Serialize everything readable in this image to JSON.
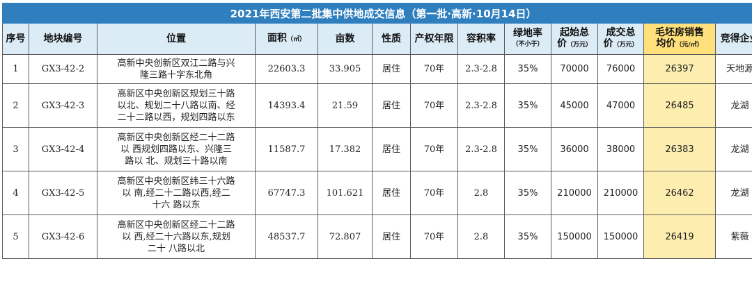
{
  "title": "2021年西安第二批集中供地成交信息（第一批·高新·10月14日）",
  "headers": {
    "no": "序号",
    "plot": "地块编号",
    "location": "位置",
    "area": "面积",
    "area_unit": "（㎡）",
    "mu": "亩数",
    "nature": "性质",
    "years": "产权年限",
    "far": "容积率",
    "green_top": "绿地率",
    "green_sub": "（不小于）",
    "start_top": "起始总",
    "start_bottom": "价",
    "start_unit": "（万元）",
    "deal_top": "成交总",
    "deal_bottom": "价",
    "deal_unit": "（万元）",
    "sale_top": "毛坯房销售",
    "sale_bottom": "均价",
    "sale_unit": "（元/㎡）",
    "winner": "竞得企业"
  },
  "rows": [
    {
      "no": "1",
      "plot": "GX3-42-2",
      "loc": [
        "高新中央创新区双江二路与兴",
        "隆三路十字东北角"
      ],
      "area": "22603.3",
      "mu": "33.905",
      "nature": "居住",
      "years": "70年",
      "far": "2.3-2.8",
      "green": "35%",
      "start": "70000",
      "deal": "76000",
      "sale": "26397",
      "winner": "天地源"
    },
    {
      "no": "2",
      "plot": "GX3-42-3",
      "loc": [
        "高新区中央创新区规划三十路",
        "以北、规划二十八路以南、经",
        "二十二路以西，规划四路以东"
      ],
      "area": "14393.4",
      "mu": "21.59",
      "nature": "居住",
      "years": "70年",
      "far": "2.3-2.8",
      "green": "35%",
      "start": "45000",
      "deal": "47000",
      "sale": "26485",
      "winner": "龙湖"
    },
    {
      "no": "3",
      "plot": "GX3-42-4",
      "loc": [
        "高新区中央创新区经二十二路",
        "以 西规划四路以东、兴隆三",
        "路以 北、规划三十路以南"
      ],
      "area": "11587.7",
      "mu": "17.382",
      "nature": "居住",
      "years": "70年",
      "far": "2.3-2.8",
      "green": "35%",
      "start": "36000",
      "deal": "38000",
      "sale": "26383",
      "winner": "龙湖"
    },
    {
      "no": "4",
      "plot": "GX3-42-5",
      "loc": [
        "高新区中央创新区纬三十六路",
        "以 南,经二十二路以西,经二",
        "十六 路以东"
      ],
      "area": "67747.3",
      "mu": "101.621",
      "nature": "居住",
      "years": "70年",
      "far": "2.8",
      "green": "35%",
      "start": "210000",
      "deal": "210000",
      "sale": "26462",
      "winner": "龙湖"
    },
    {
      "no": "5",
      "plot": "GX3-42-6",
      "loc": [
        "高新区中央创新区经二十二路",
        "以 西,经二十六路以东,规划",
        "二十 八路以北"
      ],
      "area": "48537.7",
      "mu": "72.807",
      "nature": "居住",
      "years": "70年",
      "far": "2.8",
      "green": "35%",
      "start": "150000",
      "deal": "150000",
      "sale": "26419",
      "winner": "紫薇"
    }
  ]
}
